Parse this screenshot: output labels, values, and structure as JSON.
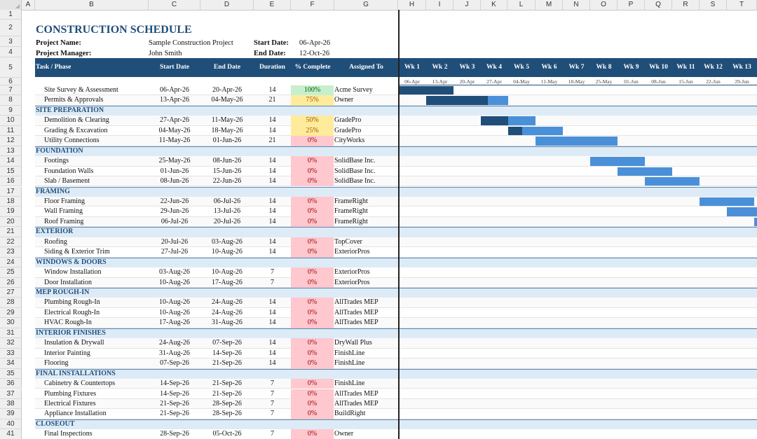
{
  "sheet": {
    "column_letters": [
      "A",
      "B",
      "C",
      "D",
      "E",
      "F",
      "G",
      "H",
      "I",
      "J",
      "K",
      "L",
      "M",
      "N",
      "O",
      "P",
      "Q",
      "R",
      "S",
      "T"
    ],
    "row_numbers": [
      1,
      2,
      3,
      4,
      5,
      6,
      7,
      8,
      9,
      10,
      11,
      12,
      13,
      14,
      15,
      16,
      17,
      18,
      19,
      20,
      21,
      22,
      23,
      24,
      25,
      26,
      27,
      28,
      29,
      30,
      31,
      32,
      33,
      34,
      35,
      36,
      37,
      38,
      39,
      40,
      41
    ]
  },
  "header": {
    "title": "CONSTRUCTION SCHEDULE",
    "project_name_label": "Project Name:",
    "project_name": "Sample Construction Project",
    "project_manager_label": "Project Manager:",
    "project_manager": "John Smith",
    "start_date_label": "Start Date:",
    "start_date": "06-Apr-26",
    "end_date_label": "End Date:",
    "end_date": "12-Oct-26"
  },
  "table_headers": [
    "Task / Phase",
    "Start Date",
    "End Date",
    "Duration",
    "% Complete",
    "Assigned To"
  ],
  "weeks": [
    "Wk 1",
    "Wk 2",
    "Wk 3",
    "Wk 4",
    "Wk 5",
    "Wk 6",
    "Wk 7",
    "Wk 8",
    "Wk 9",
    "Wk 10",
    "Wk 11",
    "Wk 12",
    "Wk 13"
  ],
  "week_dates": [
    "06-Apr",
    "13-Apr",
    "20-Apr",
    "27-Apr",
    "04-May",
    "11-May",
    "18-May",
    "25-May",
    "01-Jun",
    "08-Jun",
    "15-Jun",
    "22-Jun",
    "29-Jun"
  ],
  "colors": {
    "header_bg": "#1f4e79",
    "phase_bg": "#ddebf7",
    "bar_dark": "#1f4e79",
    "bar_light": "#4a90d9"
  },
  "rows": [
    {
      "kind": "task",
      "name": "Site Survey & Assessment",
      "start": "06-Apr-26",
      "end": "20-Apr-26",
      "duration": "14",
      "pct": "100%",
      "status": "done",
      "assigned": "Acme Survey",
      "bar_start_week": 0,
      "bar_weeks": 2,
      "progress": 1.0
    },
    {
      "kind": "task",
      "name": "Permits & Approvals",
      "start": "13-Apr-26",
      "end": "04-May-26",
      "duration": "21",
      "pct": "75%",
      "status": "mid",
      "assigned": "Owner",
      "bar_start_week": 1,
      "bar_weeks": 3,
      "progress": 0.75
    },
    {
      "kind": "phase",
      "name": "SITE PREPARATION"
    },
    {
      "kind": "task",
      "name": "Demolition & Clearing",
      "start": "27-Apr-26",
      "end": "11-May-26",
      "duration": "14",
      "pct": "50%",
      "status": "mid",
      "assigned": "GradePro",
      "bar_start_week": 3,
      "bar_weeks": 2,
      "progress": 0.5
    },
    {
      "kind": "task",
      "name": "Grading & Excavation",
      "start": "04-May-26",
      "end": "18-May-26",
      "duration": "14",
      "pct": "25%",
      "status": "mid",
      "assigned": "GradePro",
      "bar_start_week": 4,
      "bar_weeks": 2,
      "progress": 0.25
    },
    {
      "kind": "task",
      "name": "Utility Connections",
      "start": "11-May-26",
      "end": "01-Jun-26",
      "duration": "21",
      "pct": "0%",
      "status": "none",
      "assigned": "CityWorks",
      "bar_start_week": 5,
      "bar_weeks": 3,
      "progress": 0
    },
    {
      "kind": "phase",
      "name": "FOUNDATION"
    },
    {
      "kind": "task",
      "name": "Footings",
      "start": "25-May-26",
      "end": "08-Jun-26",
      "duration": "14",
      "pct": "0%",
      "status": "none",
      "assigned": "SolidBase Inc.",
      "bar_start_week": 7,
      "bar_weeks": 2,
      "progress": 0
    },
    {
      "kind": "task",
      "name": "Foundation Walls",
      "start": "01-Jun-26",
      "end": "15-Jun-26",
      "duration": "14",
      "pct": "0%",
      "status": "none",
      "assigned": "SolidBase Inc.",
      "bar_start_week": 8,
      "bar_weeks": 2,
      "progress": 0
    },
    {
      "kind": "task",
      "name": "Slab / Basement",
      "start": "08-Jun-26",
      "end": "22-Jun-26",
      "duration": "14",
      "pct": "0%",
      "status": "none",
      "assigned": "SolidBase Inc.",
      "bar_start_week": 9,
      "bar_weeks": 2,
      "progress": 0
    },
    {
      "kind": "phase",
      "name": "FRAMING"
    },
    {
      "kind": "task",
      "name": "Floor Framing",
      "start": "22-Jun-26",
      "end": "06-Jul-26",
      "duration": "14",
      "pct": "0%",
      "status": "none",
      "assigned": "FrameRight",
      "bar_start_week": 11,
      "bar_weeks": 2,
      "progress": 0
    },
    {
      "kind": "task",
      "name": "Wall Framing",
      "start": "29-Jun-26",
      "end": "13-Jul-26",
      "duration": "14",
      "pct": "0%",
      "status": "none",
      "assigned": "FrameRight",
      "bar_start_week": 12,
      "bar_weeks": 2,
      "progress": 0
    },
    {
      "kind": "task",
      "name": "Roof Framing",
      "start": "06-Jul-26",
      "end": "20-Jul-26",
      "duration": "14",
      "pct": "0%",
      "status": "none",
      "assigned": "FrameRight",
      "bar_start_week": 13,
      "bar_weeks": 2,
      "progress": 0
    },
    {
      "kind": "phase",
      "name": "EXTERIOR"
    },
    {
      "kind": "task",
      "name": "Roofing",
      "start": "20-Jul-26",
      "end": "03-Aug-26",
      "duration": "14",
      "pct": "0%",
      "status": "none",
      "assigned": "TopCover"
    },
    {
      "kind": "task",
      "name": "Siding & Exterior Trim",
      "start": "27-Jul-26",
      "end": "10-Aug-26",
      "duration": "14",
      "pct": "0%",
      "status": "none",
      "assigned": "ExteriorPros"
    },
    {
      "kind": "phase",
      "name": "WINDOWS & DOORS"
    },
    {
      "kind": "task",
      "name": "Window Installation",
      "start": "03-Aug-26",
      "end": "10-Aug-26",
      "duration": "7",
      "pct": "0%",
      "status": "none",
      "assigned": "ExteriorPros"
    },
    {
      "kind": "task",
      "name": "Door Installation",
      "start": "10-Aug-26",
      "end": "17-Aug-26",
      "duration": "7",
      "pct": "0%",
      "status": "none",
      "assigned": "ExteriorPros"
    },
    {
      "kind": "phase",
      "name": "MEP ROUGH-IN"
    },
    {
      "kind": "task",
      "name": "Plumbing Rough-In",
      "start": "10-Aug-26",
      "end": "24-Aug-26",
      "duration": "14",
      "pct": "0%",
      "status": "none",
      "assigned": "AllTrades MEP"
    },
    {
      "kind": "task",
      "name": "Electrical Rough-In",
      "start": "10-Aug-26",
      "end": "24-Aug-26",
      "duration": "14",
      "pct": "0%",
      "status": "none",
      "assigned": "AllTrades MEP"
    },
    {
      "kind": "task",
      "name": "HVAC Rough-In",
      "start": "17-Aug-26",
      "end": "31-Aug-26",
      "duration": "14",
      "pct": "0%",
      "status": "none",
      "assigned": "AllTrades MEP"
    },
    {
      "kind": "phase",
      "name": "INTERIOR FINISHES"
    },
    {
      "kind": "task",
      "name": "Insulation & Drywall",
      "start": "24-Aug-26",
      "end": "07-Sep-26",
      "duration": "14",
      "pct": "0%",
      "status": "none",
      "assigned": "DryWall Plus"
    },
    {
      "kind": "task",
      "name": "Interior Painting",
      "start": "31-Aug-26",
      "end": "14-Sep-26",
      "duration": "14",
      "pct": "0%",
      "status": "none",
      "assigned": "FinishLine"
    },
    {
      "kind": "task",
      "name": "Flooring",
      "start": "07-Sep-26",
      "end": "21-Sep-26",
      "duration": "14",
      "pct": "0%",
      "status": "none",
      "assigned": "FinishLine"
    },
    {
      "kind": "phase",
      "name": "FINAL INSTALLATIONS"
    },
    {
      "kind": "task",
      "name": "Cabinetry & Countertops",
      "start": "14-Sep-26",
      "end": "21-Sep-26",
      "duration": "7",
      "pct": "0%",
      "status": "none",
      "assigned": "FinishLine"
    },
    {
      "kind": "task",
      "name": "Plumbing Fixtures",
      "start": "14-Sep-26",
      "end": "21-Sep-26",
      "duration": "7",
      "pct": "0%",
      "status": "none",
      "assigned": "AllTrades MEP"
    },
    {
      "kind": "task",
      "name": "Electrical Fixtures",
      "start": "21-Sep-26",
      "end": "28-Sep-26",
      "duration": "7",
      "pct": "0%",
      "status": "none",
      "assigned": "AllTrades MEP"
    },
    {
      "kind": "task",
      "name": "Appliance Installation",
      "start": "21-Sep-26",
      "end": "28-Sep-26",
      "duration": "7",
      "pct": "0%",
      "status": "none",
      "assigned": "BuildRight"
    },
    {
      "kind": "phase",
      "name": "CLOSEOUT"
    },
    {
      "kind": "task",
      "name": "Final Inspections",
      "start": "28-Sep-26",
      "end": "05-Oct-26",
      "duration": "7",
      "pct": "0%",
      "status": "none",
      "assigned": "Owner"
    }
  ]
}
